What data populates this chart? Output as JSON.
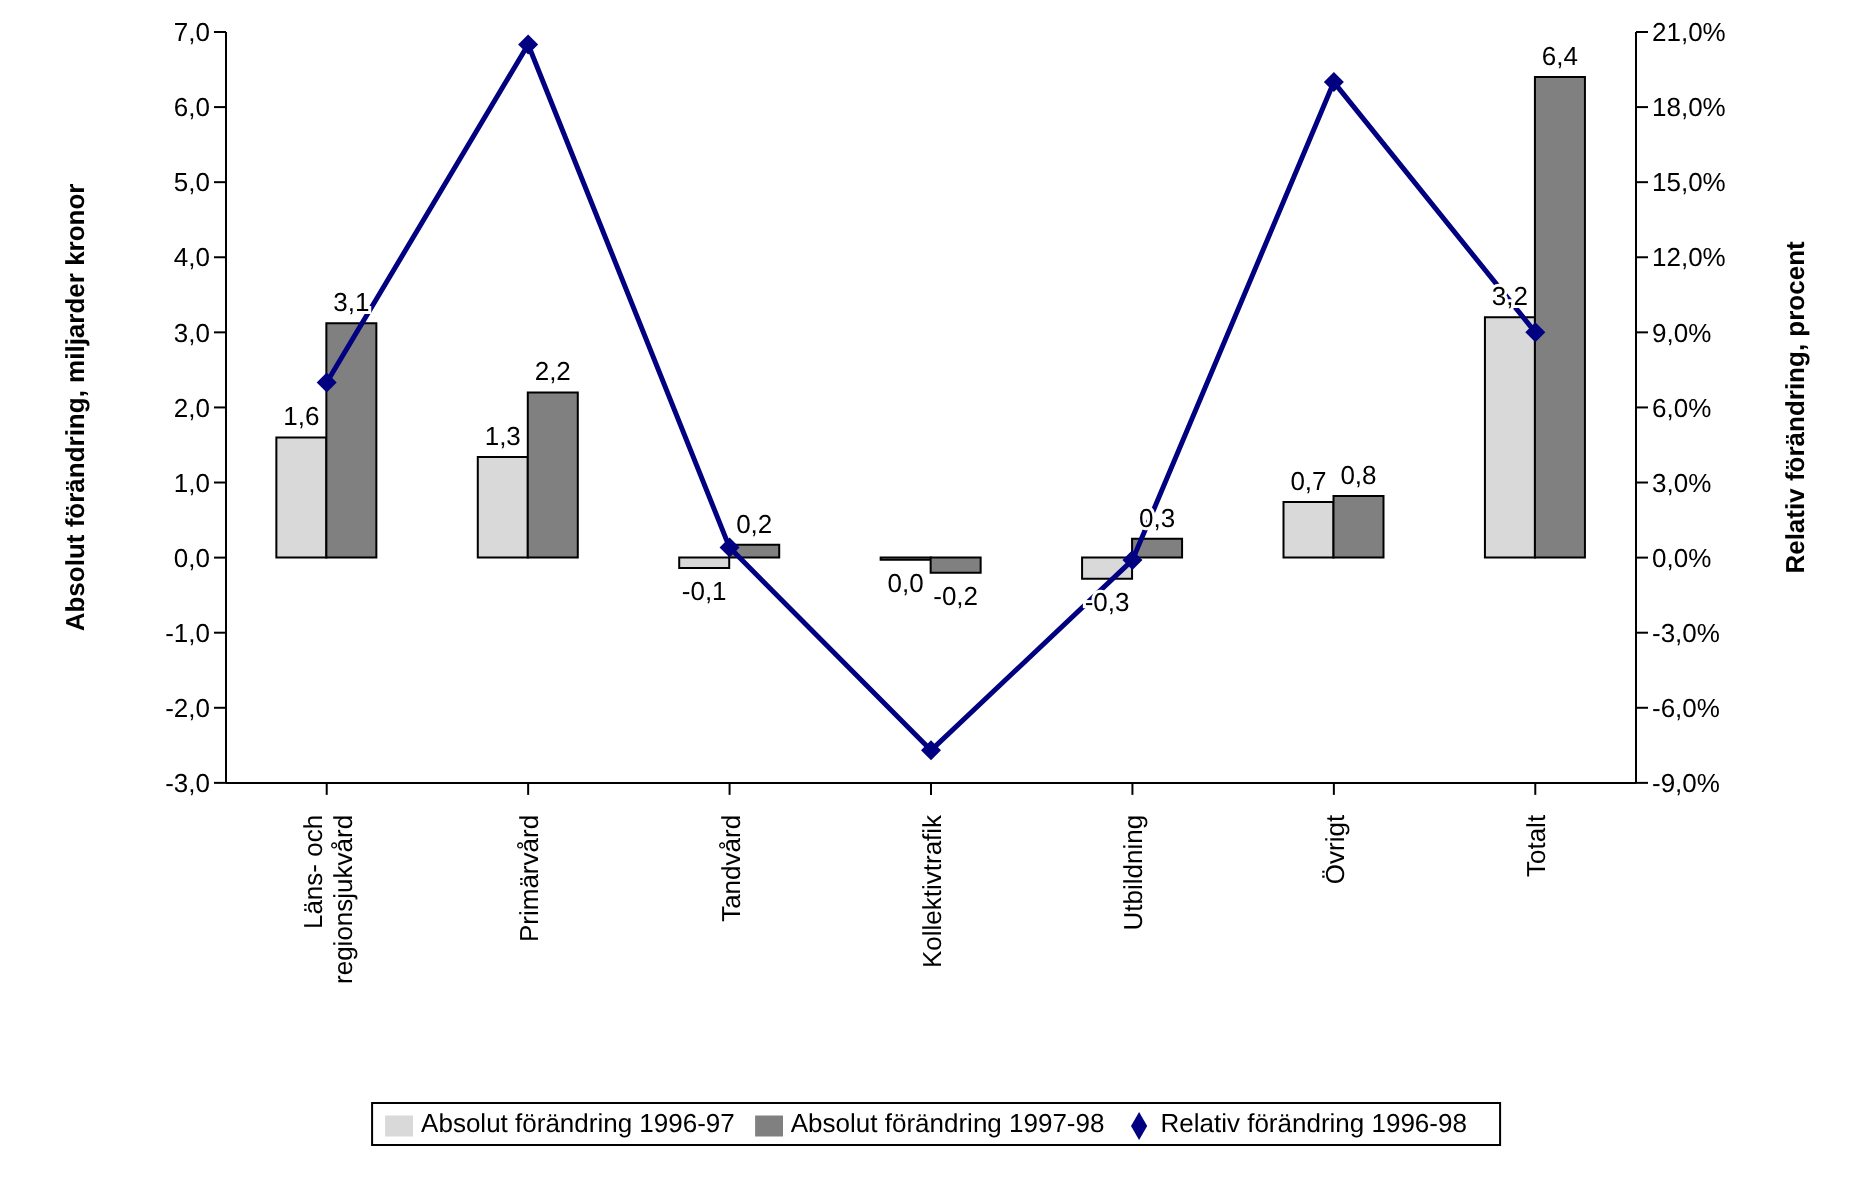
{
  "chart_data": {
    "type": "bar",
    "categories": [
      "Läns- och regionsjukvård",
      "Primärvård",
      "Tandvård",
      "Kollektivtrafik",
      "Utbildning",
      "Övrigt",
      "Totalt"
    ],
    "series": [
      {
        "name": "Absolut förändring 1996-97",
        "color": "#d9d9d9",
        "values": [
          1.6,
          1.34,
          -0.14,
          -0.03,
          -0.28,
          0.74,
          3.2
        ],
        "value_labels": [
          "1,6",
          "1,3",
          "-0,1",
          "0,0",
          "-0,3",
          "0,7",
          "3,2"
        ]
      },
      {
        "name": "Absolut förändring 1997-98",
        "color": "#808080",
        "values": [
          3.12,
          2.2,
          0.17,
          -0.2,
          0.25,
          0.82,
          6.4
        ],
        "value_labels": [
          "3,1",
          "2,2",
          "0,2",
          "-0,2",
          "0,3",
          "0,8",
          "6,4"
        ]
      },
      {
        "name": "Relativ förändring 1996-98",
        "type": "line",
        "axis": "y2",
        "color": "#000080",
        "marker": "diamond",
        "values": [
          7.0,
          20.5,
          0.4,
          -7.7,
          -0.1,
          19.0,
          9.0
        ]
      }
    ],
    "ylabel": "Absolut förändring, miljarder kronor",
    "y2label": "Relativ förändring, procent",
    "ylim": [
      -3,
      7
    ],
    "yticks": [
      {
        "value": -3,
        "label": "-3,0"
      },
      {
        "value": -2,
        "label": "-2,0"
      },
      {
        "value": -1,
        "label": "-1,0"
      },
      {
        "value": 0,
        "label": "0,0"
      },
      {
        "value": 1,
        "label": "1,0"
      },
      {
        "value": 2,
        "label": "2,0"
      },
      {
        "value": 3,
        "label": "3,0"
      },
      {
        "value": 4,
        "label": "4,0"
      },
      {
        "value": 5,
        "label": "5,0"
      },
      {
        "value": 6,
        "label": "6,0"
      },
      {
        "value": 7,
        "label": "7,0"
      }
    ],
    "y2lim": [
      -9,
      21
    ],
    "y2ticks": [
      {
        "value": -9,
        "label": "-9,0%"
      },
      {
        "value": -6,
        "label": "-6,0%"
      },
      {
        "value": -3,
        "label": "-3,0%"
      },
      {
        "value": 0,
        "label": "0,0%"
      },
      {
        "value": 3,
        "label": "3,0%"
      },
      {
        "value": 6,
        "label": "6,0%"
      },
      {
        "value": 9,
        "label": "9,0%"
      },
      {
        "value": 12,
        "label": "12,0%"
      },
      {
        "value": 15,
        "label": "15,0%"
      },
      {
        "value": 18,
        "label": "18,0%"
      },
      {
        "value": 21,
        "label": "21,0%"
      }
    ],
    "grid": false,
    "legend": "bottom"
  }
}
